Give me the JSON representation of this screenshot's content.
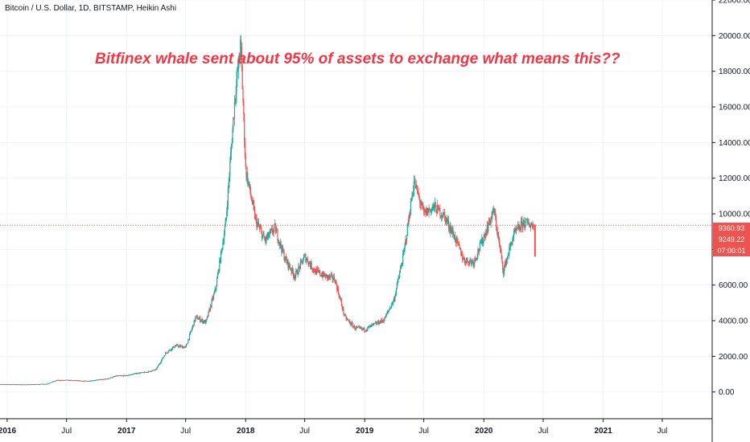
{
  "chart_data": {
    "type": "candlestick",
    "title": "Bitcoin / U.S. Dollar, 1D, BITSTAMP, Heikin Ashi",
    "annotation": "Bitfinex whale sent about 95% of assets to exchange what means this??",
    "xlabel": "",
    "ylabel": "",
    "ylim": [
      -1500,
      22000
    ],
    "y_ticks": [
      "0.00",
      "2000.00",
      "4000.00",
      "6000.00",
      "8000.00",
      "10000.00",
      "12000.00",
      "14000.00",
      "16000.00",
      "18000.00",
      "20000.00",
      "22000.00"
    ],
    "x_ticks": [
      "2016",
      "Jul",
      "2017",
      "Jul",
      "2018",
      "Jul",
      "2019",
      "Jul",
      "2020",
      "Jul",
      "2021",
      "Jul"
    ],
    "x_tick_dates": [
      "2016-01",
      "2016-07",
      "2017-01",
      "2017-07",
      "2018-01",
      "2018-07",
      "2019-01",
      "2019-07",
      "2020-01",
      "2020-07",
      "2021-01",
      "2021-07"
    ],
    "grid": true,
    "last_price": "9360.93",
    "last_price_value": 9360.93,
    "second_price": "9249.22",
    "countdown": "07:00:01",
    "series": [
      {
        "name": "",
        "x": [
          "2015-12",
          "2016-01",
          "2016-03",
          "2016-05",
          "2016-06",
          "2016-07",
          "2016-09",
          "2016-11",
          "2016-12",
          "2017-01",
          "2017-02",
          "2017-03",
          "2017-04",
          "2017-05",
          "2017-06",
          "2017-07",
          "2017-08",
          "2017-09",
          "2017-10",
          "2017-11",
          "2017-12",
          "2017-12-17",
          "2018-01",
          "2018-02",
          "2018-03",
          "2018-04",
          "2018-05",
          "2018-06",
          "2018-07",
          "2018-08",
          "2018-09",
          "2018-10",
          "2018-11",
          "2018-12",
          "2019-01",
          "2019-02",
          "2019-03",
          "2019-04",
          "2019-05",
          "2019-06",
          "2019-07",
          "2019-08",
          "2019-09",
          "2019-10",
          "2019-11",
          "2019-12",
          "2020-01",
          "2020-02",
          "2020-03",
          "2020-04",
          "2020-05",
          "2020-06"
        ],
        "values": [
          420,
          430,
          415,
          450,
          650,
          660,
          610,
          730,
          900,
          920,
          1050,
          1100,
          1250,
          2200,
          2600,
          2500,
          4200,
          3900,
          5800,
          9500,
          17000,
          19500,
          12500,
          9600,
          8500,
          9200,
          7500,
          6500,
          7600,
          6800,
          6500,
          6350,
          4200,
          3600,
          3500,
          3800,
          4050,
          5200,
          7800,
          11800,
          10000,
          10400,
          9900,
          8800,
          7400,
          7300,
          8700,
          10200,
          6800,
          8800,
          9500,
          9360
        ]
      }
    ],
    "colors": {
      "up": "#26a69a",
      "down": "#ef5350",
      "grid": "#f0f3fa",
      "axis": "#131722",
      "price_line": "#ef5350"
    }
  }
}
